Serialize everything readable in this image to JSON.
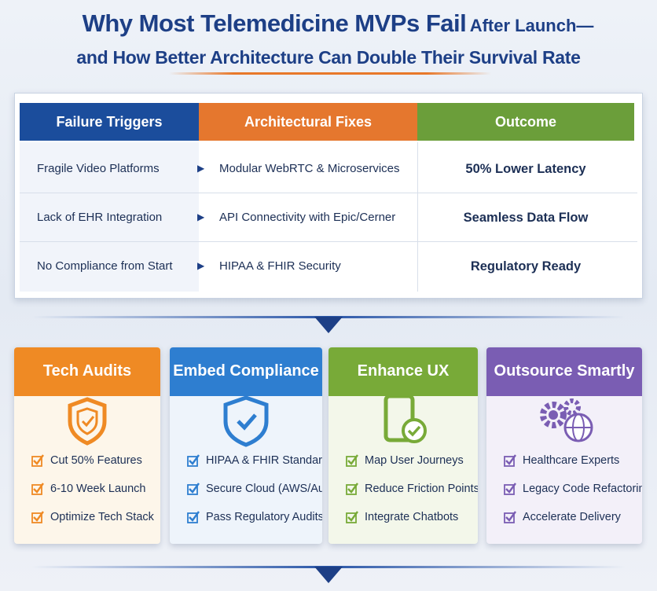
{
  "title": {
    "main": "Why Most Telemedicine MVPs Fail",
    "tail": "After Launch—",
    "subtitle": "and How Better Architecture Can Double Their Survival Rate"
  },
  "table": {
    "headers": [
      "Failure Triggers",
      "Architectural Fixes",
      "Outcome"
    ],
    "rows": [
      [
        "Fragile Video Platforms",
        "Modular WebRTC & Microservices",
        "50% Lower Latency"
      ],
      [
        "Lack of EHR Integration",
        "API Connectivity with Epic/Cerner",
        "Seamless Data Flow"
      ],
      [
        "No Compliance from Start",
        "HIPAA & FHIR Security",
        "Regulatory Ready"
      ]
    ]
  },
  "cards": [
    {
      "title": "Tech Audits",
      "items": [
        "Cut 50% Features",
        "6-10 Week Launch",
        "Optimize Tech Stack"
      ]
    },
    {
      "title": "Embed Compliance",
      "items": [
        "HIPAA & FHIR Standards",
        "Secure Cloud (AWS/Auure)",
        "Pass Regulatory Audits"
      ]
    },
    {
      "title": "Enhance UX",
      "items": [
        "Map User Journeys",
        "Reduce Friction Points",
        "Integrate Chatbots"
      ]
    },
    {
      "title": "Outsource Smartly",
      "items": [
        "Healthcare Experts",
        "Legacy Code Refactoring",
        "Accelerate Delivery"
      ]
    }
  ]
}
